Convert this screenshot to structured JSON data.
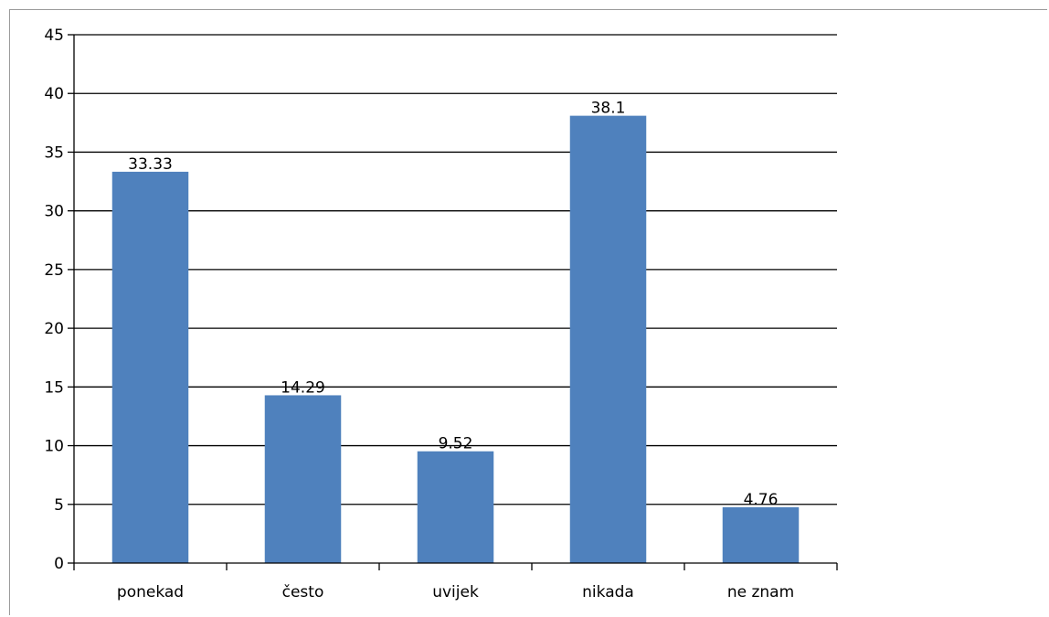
{
  "chart_data": {
    "type": "bar",
    "categories": [
      "ponekad",
      "često",
      "uvijek",
      "nikada",
      "ne znam"
    ],
    "values": [
      33.33,
      14.29,
      9.52,
      38.1,
      4.76
    ],
    "data_labels": [
      "33.33",
      "14.29",
      "9.52",
      "38.1",
      "4.76"
    ],
    "title": "",
    "xlabel": "",
    "ylabel": "",
    "ylim": [
      0,
      45
    ],
    "yticks": [
      "0",
      "5",
      "10",
      "15",
      "20",
      "25",
      "30",
      "35",
      "40",
      "45"
    ],
    "grid": true,
    "legend": "none",
    "colors": {
      "bar": "#4f81bd",
      "grid": "#000000",
      "axis": "#000000"
    }
  }
}
